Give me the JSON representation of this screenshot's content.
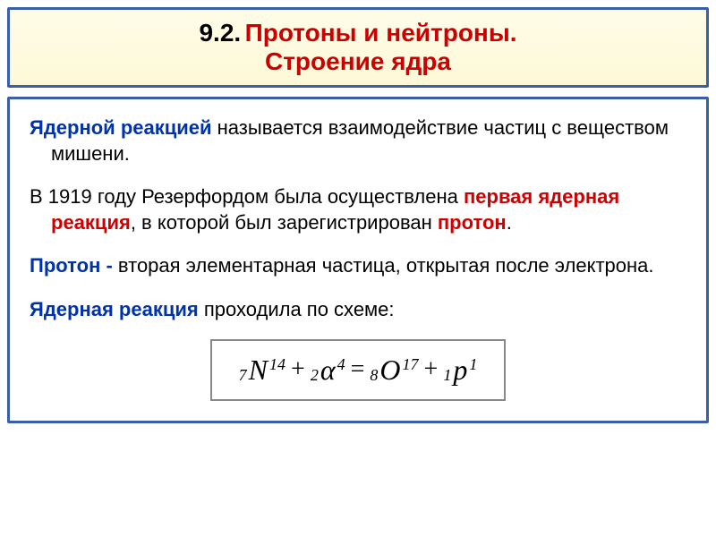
{
  "title": {
    "number": "9.2.",
    "text_line1": "Протоны и нейтроны.",
    "text_line2": "Строение ядра"
  },
  "content": {
    "p1_term": "Ядерной реакцией",
    "p1_rest": " называется взаимодействие частиц с веществом мишени.",
    "p2_pre": "В 1919 году Резерфордом была осуществлена ",
    "p2_red1": "первая ядерная реакция",
    "p2_mid": ", в которой был зарегистрирован ",
    "p2_red2": "протон",
    "p2_end": ".",
    "p3_term": "Протон -",
    "p3_rest": " вторая элементарная частица, открытая после электрона.",
    "p4_term": "Ядерная реакция",
    "p4_rest": " проходила по схеме:"
  },
  "formula": {
    "n1_sub": "7",
    "n1_letter": "N",
    "n1_sup": "14",
    "op1": "+",
    "n2_sub": "2",
    "n2_letter": "α",
    "n2_sup": "4",
    "op2": "=",
    "n3_sub": "8",
    "n3_letter": "O",
    "n3_sup": "17",
    "op3": "+",
    "n4_sub": "1",
    "n4_letter": "p",
    "n4_sup": "1"
  },
  "colors": {
    "border": "#3a5fa8",
    "title_bg": "#fdf9d8",
    "red": "#cc0000",
    "blue": "#0033aa",
    "formula_border": "#888888"
  }
}
